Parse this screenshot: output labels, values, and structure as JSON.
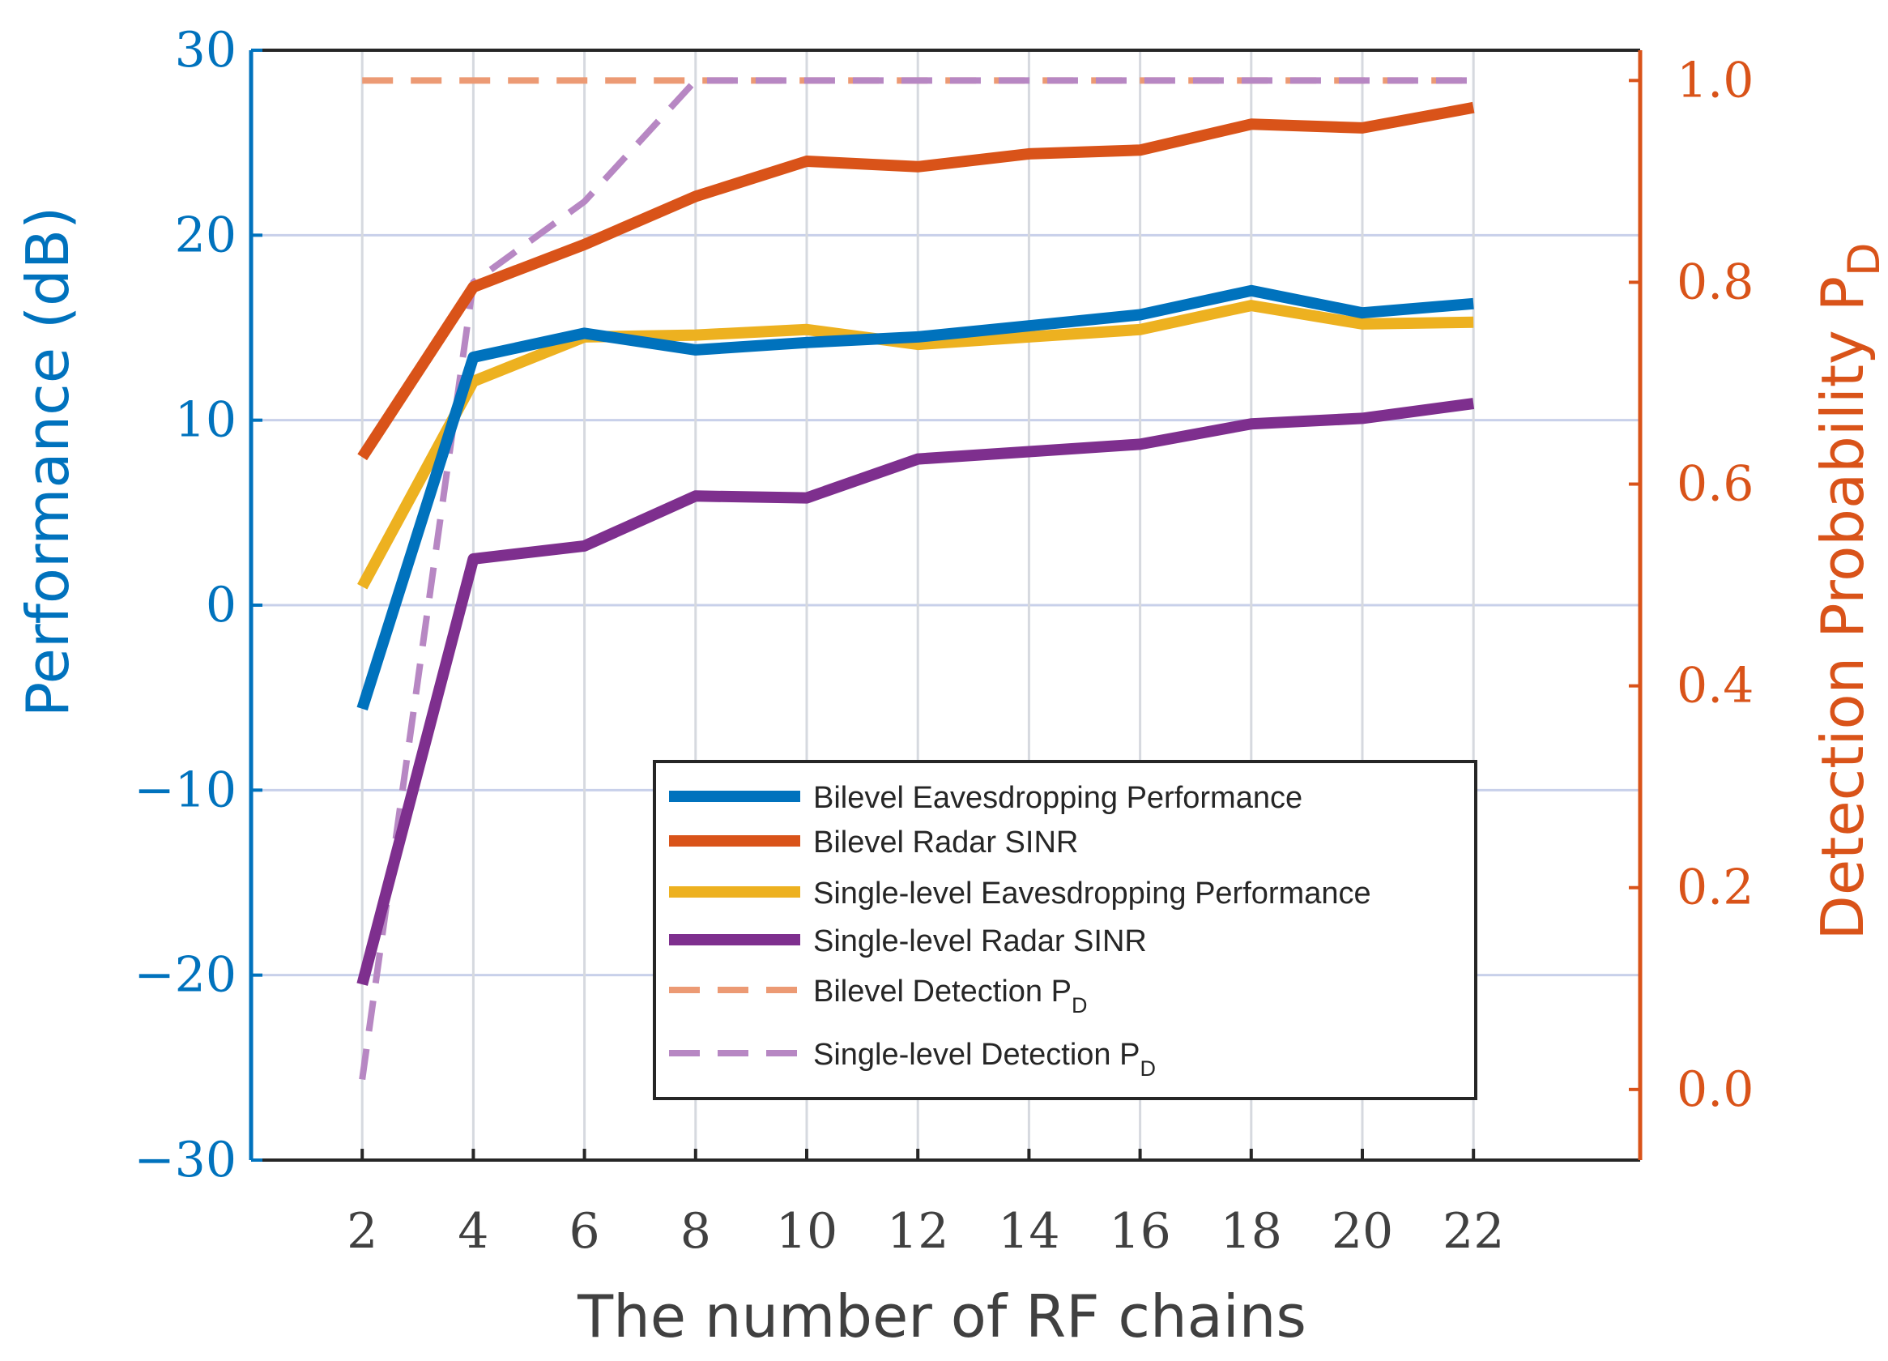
{
  "chart_data": {
    "type": "line",
    "x": [
      2,
      4,
      6,
      8,
      10,
      12,
      14,
      16,
      18,
      20,
      22
    ],
    "xlabel": "The number of RF chains",
    "ylabel_left": "Performance (dB)",
    "ylabel_right": {
      "main": "Detection Probability  P",
      "sub": "D"
    },
    "ylim_left": [
      -30,
      30
    ],
    "ylim_right": [
      -0.07,
      1.03
    ],
    "xlim": [
      0,
      25
    ],
    "xticks": [
      2,
      4,
      6,
      8,
      10,
      12,
      14,
      16,
      18,
      20,
      22
    ],
    "xtick_labels": [
      "2",
      "4",
      "6",
      "8",
      "10",
      "12",
      "14",
      "16",
      "18",
      "20",
      "22"
    ],
    "yticks_left": [
      -30,
      -20,
      -10,
      0,
      10,
      20,
      30
    ],
    "ytick_labels_left": [
      "−30",
      "−20",
      "−10",
      "0",
      "10",
      "20",
      "30"
    ],
    "yticks_right": [
      0,
      0.2,
      0.4,
      0.6,
      0.8,
      1.0
    ],
    "ytick_labels_right": [
      "0.0",
      "0.2",
      "0.4",
      "0.6",
      "0.8",
      "1.0"
    ],
    "grid": true,
    "legend_position": "bottom-right",
    "series": [
      {
        "name": "Bilevel Eavesdropping Performance",
        "axis": "left",
        "style": "solid",
        "color": "#0072BD",
        "values": [
          -5.6,
          13.4,
          14.7,
          13.8,
          14.2,
          14.5,
          15.1,
          15.7,
          17.0,
          15.8,
          16.3
        ]
      },
      {
        "name": "Bilevel Radar SINR",
        "axis": "left",
        "style": "solid",
        "color": "#D95319",
        "values": [
          8.0,
          17.2,
          19.5,
          22.1,
          24.0,
          23.7,
          24.4,
          24.6,
          26.0,
          25.8,
          26.9
        ]
      },
      {
        "name": "Single-level Eavesdropping Performance",
        "axis": "left",
        "style": "solid",
        "color": "#EDB120",
        "values": [
          1.0,
          12.1,
          14.5,
          14.6,
          14.9,
          14.1,
          14.5,
          14.9,
          16.2,
          15.2,
          15.3
        ]
      },
      {
        "name": "Single-level Radar SINR",
        "axis": "left",
        "style": "solid",
        "color": "#7E2F8E",
        "values": [
          -20.5,
          2.5,
          3.2,
          5.9,
          5.8,
          7.9,
          8.3,
          8.7,
          9.8,
          10.1,
          10.9
        ]
      },
      {
        "name": "Bilevel Detection P",
        "name_sub": "D",
        "axis": "right",
        "style": "dashed",
        "color": "#EC9A74",
        "values": [
          1.0,
          1.0,
          1.0,
          1.0,
          1.0,
          1.0,
          1.0,
          1.0,
          1.0,
          1.0,
          1.0
        ]
      },
      {
        "name": "Single-level Detection P",
        "name_sub": "D",
        "axis": "right",
        "style": "dashed",
        "color": "#B787C3",
        "values": [
          0.01,
          0.8,
          0.88,
          1.0,
          1.0,
          1.0,
          1.0,
          1.0,
          1.0,
          1.0,
          1.0
        ]
      }
    ]
  },
  "colors": {
    "left_axis": "#0072BD",
    "right_axis": "#D95319",
    "x_axis": "#404040",
    "grid_horizontal": "#C8D0EA",
    "grid_vertical": "#D6D9DF"
  }
}
